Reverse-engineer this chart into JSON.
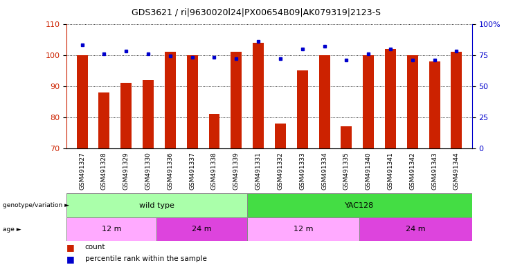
{
  "title": "GDS3621 / ri|9630020l24|PX00654B09|AK079319|2123-S",
  "samples": [
    "GSM491327",
    "GSM491328",
    "GSM491329",
    "GSM491330",
    "GSM491336",
    "GSM491337",
    "GSM491338",
    "GSM491339",
    "GSM491331",
    "GSM491332",
    "GSM491333",
    "GSM491334",
    "GSM491335",
    "GSM491340",
    "GSM491341",
    "GSM491342",
    "GSM491343",
    "GSM491344"
  ],
  "counts": [
    100,
    88,
    91,
    92,
    101,
    100,
    81,
    101,
    104,
    78,
    95,
    100,
    77,
    100,
    102,
    100,
    98,
    101
  ],
  "percentile_ranks": [
    83,
    76,
    78,
    76,
    74,
    73,
    73,
    72,
    86,
    72,
    80,
    82,
    71,
    76,
    80,
    71,
    71,
    78
  ],
  "ylim_left": [
    70,
    110
  ],
  "ylim_right": [
    0,
    100
  ],
  "yticks_left": [
    70,
    80,
    90,
    100,
    110
  ],
  "yticks_right": [
    0,
    25,
    50,
    75,
    100
  ],
  "bar_color": "#CC2200",
  "marker_color": "#0000CC",
  "title_fontsize": 9,
  "genotype_groups": [
    {
      "label": "wild type",
      "start": 0,
      "end": 8,
      "color": "#AAFFAA"
    },
    {
      "label": "YAC128",
      "start": 8,
      "end": 18,
      "color": "#44DD44"
    }
  ],
  "age_groups": [
    {
      "label": "12 m",
      "start": 0,
      "end": 4,
      "color": "#FFAAFF"
    },
    {
      "label": "24 m",
      "start": 4,
      "end": 8,
      "color": "#DD44DD"
    },
    {
      "label": "12 m",
      "start": 8,
      "end": 13,
      "color": "#FFAAFF"
    },
    {
      "label": "24 m",
      "start": 13,
      "end": 18,
      "color": "#DD44DD"
    }
  ],
  "legend_count_color": "#CC2200",
  "legend_pct_color": "#0000CC"
}
